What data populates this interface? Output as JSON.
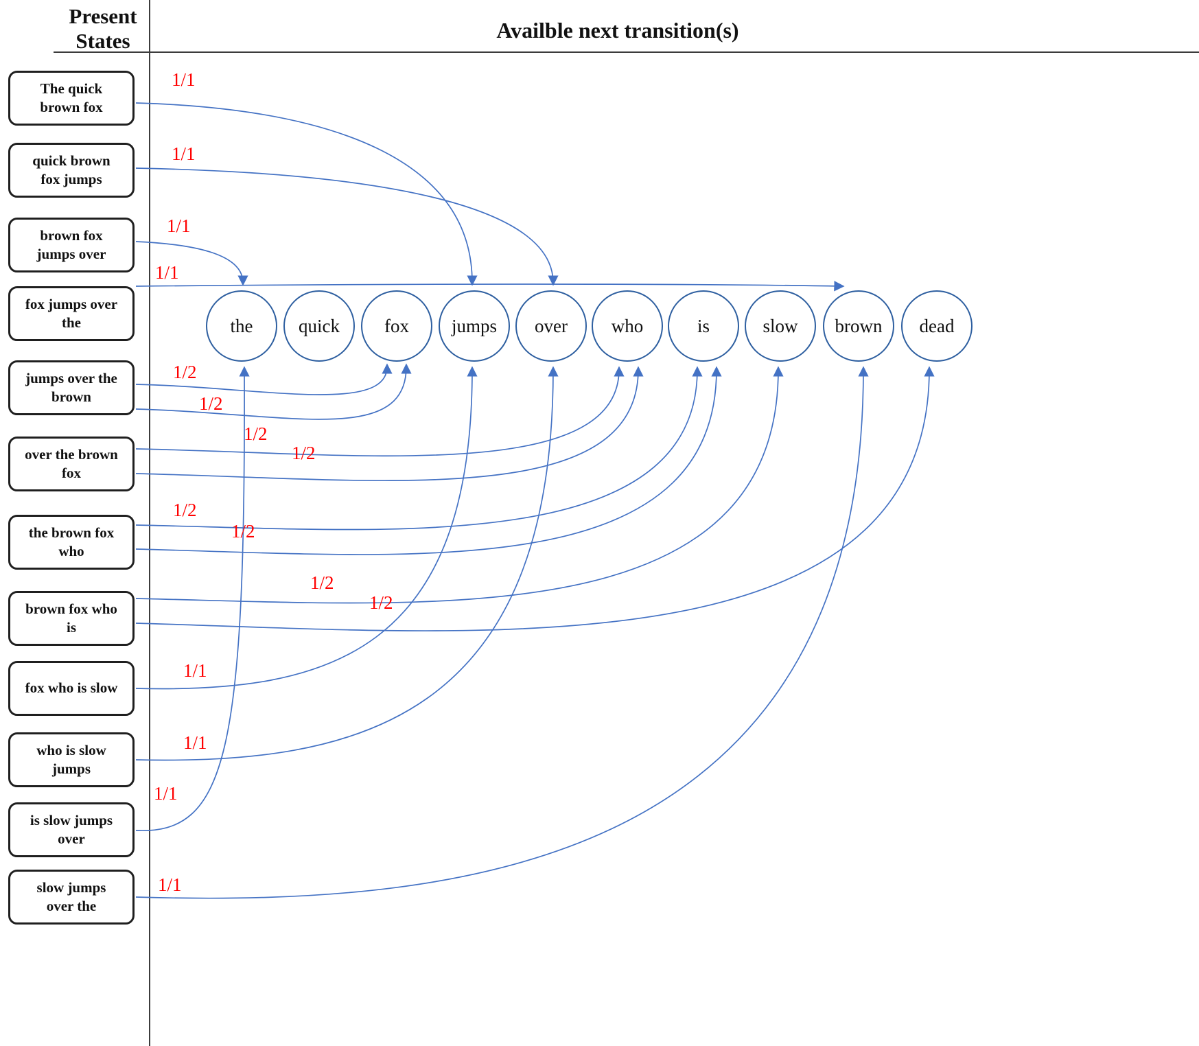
{
  "header": {
    "left_title": "Present\nStates",
    "right_title": "Availble next transition(s)"
  },
  "states": [
    {
      "label": "The quick\nbrown fox"
    },
    {
      "label": "quick brown\nfox jumps"
    },
    {
      "label": "brown fox\njumps over"
    },
    {
      "label": "fox jumps over\nthe"
    },
    {
      "label": "jumps over the\nbrown"
    },
    {
      "label": "over the brown\nfox"
    },
    {
      "label": "the brown fox\nwho"
    },
    {
      "label": "brown fox who\nis"
    },
    {
      "label": "fox who is slow"
    },
    {
      "label": "who is slow\njumps"
    },
    {
      "label": "is slow jumps\nover"
    },
    {
      "label": "slow jumps\nover the"
    }
  ],
  "nodes": [
    {
      "label": "the"
    },
    {
      "label": "quick"
    },
    {
      "label": "fox"
    },
    {
      "label": "jumps"
    },
    {
      "label": "over"
    },
    {
      "label": "who"
    },
    {
      "label": "is"
    },
    {
      "label": "slow"
    },
    {
      "label": "brown"
    },
    {
      "label": "dead"
    }
  ],
  "edges": [
    {
      "from": "The quick brown fox",
      "to": "jumps",
      "prob": "1/1"
    },
    {
      "from": "quick brown fox jumps",
      "to": "over",
      "prob": "1/1"
    },
    {
      "from": "brown fox jumps over",
      "to": "the",
      "prob": "1/1"
    },
    {
      "from": "fox jumps over the",
      "to": "brown",
      "prob": "1/1"
    },
    {
      "from": "jumps over the brown",
      "to": "fox",
      "prob": "1/2"
    },
    {
      "from": "jumps over the brown",
      "to": "fox",
      "prob": "1/2"
    },
    {
      "from": "over the brown fox",
      "to": "who",
      "prob": "1/2"
    },
    {
      "from": "over the brown fox",
      "to": "who",
      "prob": "1/2"
    },
    {
      "from": "the brown fox who",
      "to": "is",
      "prob": "1/2"
    },
    {
      "from": "the brown fox who",
      "to": "is",
      "prob": "1/2"
    },
    {
      "from": "brown fox who is",
      "to": "slow",
      "prob": "1/2"
    },
    {
      "from": "brown fox who is",
      "to": "dead",
      "prob": "1/2"
    },
    {
      "from": "fox who is slow",
      "to": "jumps",
      "prob": "1/1"
    },
    {
      "from": "who is slow jumps",
      "to": "over",
      "prob": "1/1"
    },
    {
      "from": "is slow jumps over",
      "to": "the",
      "prob": "1/1"
    },
    {
      "from": "slow jumps over the",
      "to": "brown",
      "prob": "1/1"
    }
  ],
  "colors": {
    "edge": "#4472c4",
    "node_border": "#2e5fa0",
    "prob": "#ff0000",
    "box_border": "#1f1f1f"
  }
}
